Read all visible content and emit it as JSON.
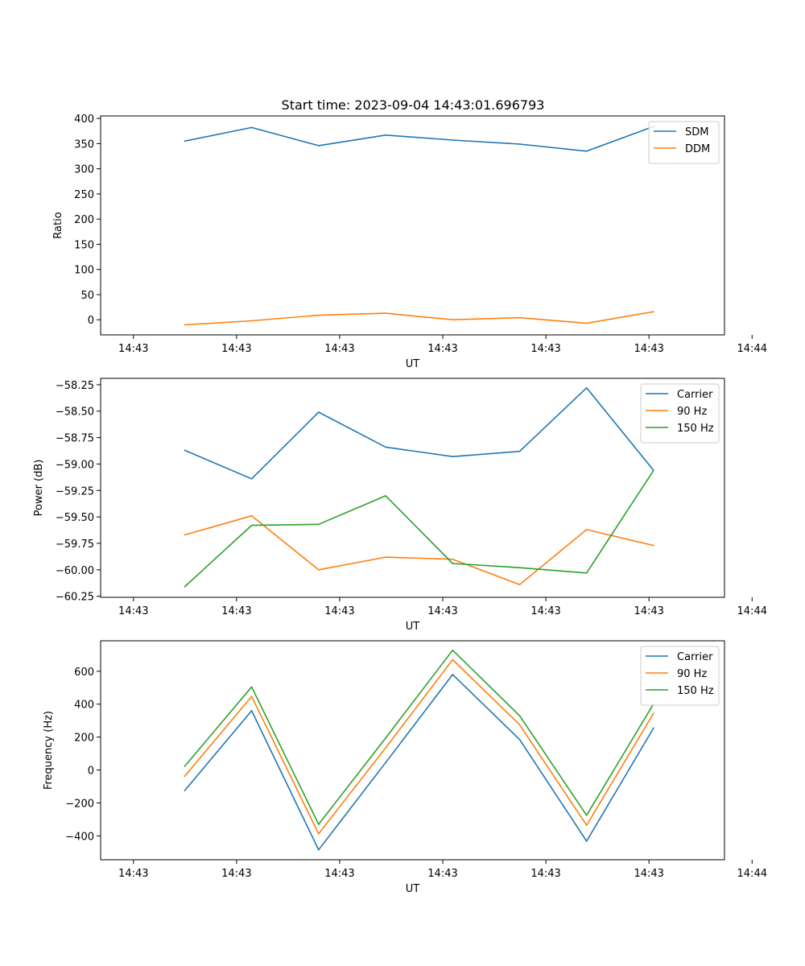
{
  "title": "Start time: 2023-09-04 14:43:01.696793",
  "colors": {
    "blue": "#1f77b4",
    "orange": "#ff7f0e",
    "green": "#2ca02c"
  },
  "chart_data": [
    {
      "type": "line",
      "title": "Start time: 2023-09-04 14:43:01.696793",
      "xlabel": "UT",
      "ylabel": "Ratio",
      "xlim": [
        -0.5,
        9.0
      ],
      "x_ticks": [
        0,
        1.57,
        3.14,
        4.71,
        6.28,
        7.85,
        9.42
      ],
      "x_tick_labels": [
        "14:43",
        "14:43",
        "14:43",
        "14:43",
        "14:43",
        "14:43",
        "14:44"
      ],
      "ylim": [
        -30,
        405
      ],
      "y_ticks": [
        0,
        50,
        100,
        150,
        200,
        250,
        300,
        350,
        400
      ],
      "y_tick_labels": [
        "0",
        "50",
        "100",
        "150",
        "200",
        "250",
        "300",
        "350",
        "400"
      ],
      "x": [
        0.78,
        1.8,
        2.82,
        3.84,
        4.86,
        5.88,
        6.9,
        7.92
      ],
      "series": [
        {
          "name": "SDM",
          "color": "#1f77b4",
          "values": [
            355,
            382,
            346,
            367,
            357,
            349,
            335,
            384
          ]
        },
        {
          "name": "DDM",
          "color": "#ff7f0e",
          "values": [
            -10,
            -2,
            9,
            13,
            0,
            4,
            -7,
            16
          ]
        }
      ],
      "legend": "top-right"
    },
    {
      "type": "line",
      "title": "",
      "xlabel": "UT",
      "ylabel": "Power (dB)",
      "xlim": [
        -0.5,
        9.0
      ],
      "x_ticks": [
        0,
        1.57,
        3.14,
        4.71,
        6.28,
        7.85,
        9.42
      ],
      "x_tick_labels": [
        "14:43",
        "14:43",
        "14:43",
        "14:43",
        "14:43",
        "14:43",
        "14:44"
      ],
      "ylim": [
        -60.26,
        -58.19
      ],
      "y_ticks": [
        -60.25,
        -60.0,
        -59.75,
        -59.5,
        -59.25,
        -59.0,
        -58.75,
        -58.5,
        -58.25
      ],
      "y_tick_labels": [
        "−60.25",
        "−60.00",
        "−59.75",
        "−59.50",
        "−59.25",
        "−59.00",
        "−58.75",
        "−58.50",
        "−58.25"
      ],
      "x": [
        0.78,
        1.8,
        2.82,
        3.84,
        4.86,
        5.88,
        6.9,
        7.92
      ],
      "series": [
        {
          "name": "Carrier",
          "color": "#1f77b4",
          "values": [
            -58.87,
            -59.14,
            -58.51,
            -58.84,
            -58.93,
            -58.88,
            -58.28,
            -59.06
          ]
        },
        {
          "name": "90 Hz",
          "color": "#ff7f0e",
          "values": [
            -59.67,
            -59.49,
            -60.0,
            -59.88,
            -59.9,
            -60.14,
            -59.62,
            -59.77
          ]
        },
        {
          "name": "150 Hz",
          "color": "#2ca02c",
          "values": [
            -60.16,
            -59.58,
            -59.57,
            -59.3,
            -59.94,
            -59.98,
            -60.03,
            -59.06
          ]
        }
      ],
      "legend": "top-right"
    },
    {
      "type": "line",
      "title": "",
      "xlabel": "UT",
      "ylabel": "Frequency (Hz)",
      "xlim": [
        -0.5,
        9.0
      ],
      "x_ticks": [
        0,
        1.57,
        3.14,
        4.71,
        6.28,
        7.85,
        9.42
      ],
      "x_tick_labels": [
        "14:43",
        "14:43",
        "14:43",
        "14:43",
        "14:43",
        "14:43",
        "14:44"
      ],
      "ylim": [
        -545,
        785
      ],
      "y_ticks": [
        -400,
        -200,
        0,
        200,
        400,
        600
      ],
      "y_tick_labels": [
        "−400",
        "−200",
        "0",
        "200",
        "400",
        "600"
      ],
      "x": [
        0.78,
        1.8,
        2.82,
        3.84,
        4.86,
        5.88,
        6.9,
        7.92
      ],
      "series": [
        {
          "name": "Carrier",
          "color": "#1f77b4",
          "values": [
            -125,
            360,
            -485,
            45,
            580,
            185,
            -432,
            255
          ]
        },
        {
          "name": "90 Hz",
          "color": "#ff7f0e",
          "values": [
            -38,
            447,
            -387,
            135,
            670,
            275,
            -335,
            345
          ]
        },
        {
          "name": "150 Hz",
          "color": "#2ca02c",
          "values": [
            22,
            505,
            -330,
            195,
            728,
            330,
            -275,
            402
          ]
        }
      ],
      "legend": "top-right"
    }
  ]
}
